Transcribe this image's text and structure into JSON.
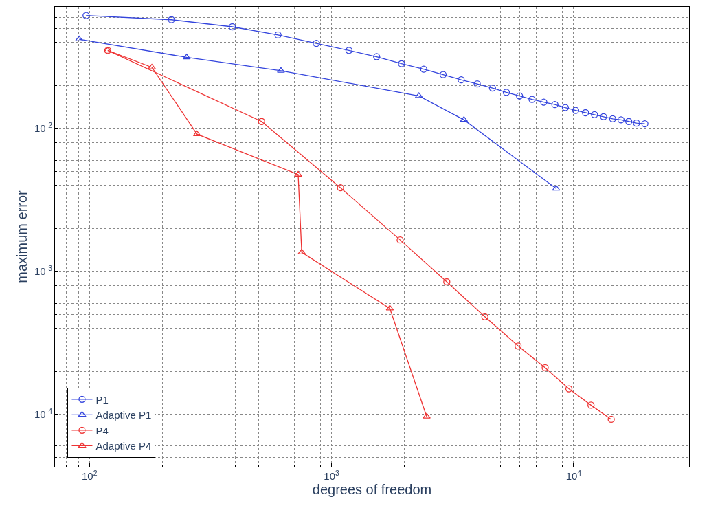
{
  "chart_data": {
    "type": "line",
    "xlabel": "degrees of freedom",
    "ylabel": "maximum error",
    "log": "xy",
    "grid": true,
    "legend": "bottom left",
    "xlim": [
      72,
      30000
    ],
    "ylim": [
      4.3e-05,
      0.071
    ],
    "xticks": [
      {
        "value": 100,
        "label": "10$^{2}$"
      },
      {
        "value": 1000,
        "label": "10$^{3}$"
      },
      {
        "value": 10000,
        "label": "10$^{4}$"
      }
    ],
    "yticks": [
      {
        "value": 0.0001,
        "label": "10$^{-4}$"
      },
      {
        "value": 0.001,
        "label": "10$^{-3}$"
      },
      {
        "value": 0.01,
        "label": "10$^{-2}$"
      }
    ],
    "series": [
      {
        "name": "P1",
        "color": "#3344dd",
        "marker": "circle",
        "x": [
          96.8,
          218,
          389,
          601,
          865,
          1180,
          1536,
          1946,
          2404,
          2891,
          3432,
          3998,
          4623,
          5276,
          5980,
          6734,
          7533,
          8372,
          9247,
          10200,
          11200,
          12200,
          13300,
          14500,
          15700,
          16900,
          18200,
          19700
        ],
        "values": [
          0.0617,
          0.0577,
          0.0515,
          0.0451,
          0.0394,
          0.0352,
          0.0318,
          0.0284,
          0.026,
          0.0238,
          0.0219,
          0.0205,
          0.0192,
          0.0179,
          0.0169,
          0.016,
          0.0153,
          0.0147,
          0.014,
          0.0134,
          0.0129,
          0.0125,
          0.0121,
          0.0117,
          0.0115,
          0.0112,
          0.0109,
          0.0108
        ]
      },
      {
        "name": "Adaptive P1",
        "color": "#3344dd",
        "marker": "triangle",
        "x": [
          90.6,
          252,
          618,
          2296,
          3524,
          8470
        ],
        "values": [
          0.0421,
          0.0315,
          0.0254,
          0.0169,
          0.0115,
          0.0038
        ]
      },
      {
        "name": "P4",
        "color": "#ee3333",
        "marker": "circle",
        "x": [
          119,
          514,
          1089,
          1921,
          2993,
          4300,
          5900,
          7630,
          9560,
          11800,
          14300
        ],
        "values": [
          0.0352,
          0.0112,
          0.00385,
          0.00166,
          0.000846,
          0.000482,
          0.000301,
          0.000212,
          0.000151,
          0.000116,
          9.24e-05
        ]
      },
      {
        "name": "Adaptive P4",
        "color": "#ee3333",
        "marker": "triangle",
        "x": [
          119,
          181,
          278,
          728,
          753,
          1741,
          2472
        ],
        "values": [
          0.0352,
          0.0268,
          0.00914,
          0.00476,
          0.00136,
          0.000551,
          9.66e-05
        ]
      }
    ]
  }
}
